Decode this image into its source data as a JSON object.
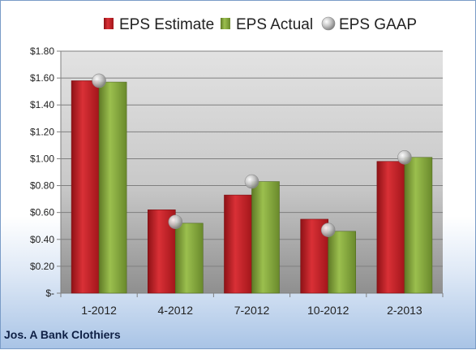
{
  "footer": "Jos. A Bank Clothiers",
  "colors": {
    "estimate": "#c42126",
    "actual": "#83a33c",
    "gaap": "#b7b7b7",
    "plot_bg_top": "#d9d9d9",
    "plot_bg_bottom": "#9a9a9a",
    "accent": "#7a9cc7"
  },
  "chart_data": {
    "type": "bar",
    "categories": [
      "1-2012",
      "4-2012",
      "7-2012",
      "10-2012",
      "2-2013"
    ],
    "series": [
      {
        "name": "EPS Estimate",
        "type": "bar",
        "values": [
          1.58,
          0.62,
          0.73,
          0.55,
          0.98
        ]
      },
      {
        "name": "EPS Actual",
        "type": "bar",
        "values": [
          1.57,
          0.52,
          0.83,
          0.46,
          1.01
        ]
      },
      {
        "name": "EPS GAAP",
        "type": "scatter",
        "values": [
          1.58,
          0.53,
          0.83,
          0.47,
          1.01
        ]
      }
    ],
    "yticks": [
      "$-",
      "$0.20",
      "$0.40",
      "$0.60",
      "$0.80",
      "$1.00",
      "$1.20",
      "$1.40",
      "$1.60",
      "$1.80"
    ],
    "ylim": [
      0,
      1.8
    ],
    "grid": true,
    "legend_position": "top",
    "title": "",
    "xlabel": "",
    "ylabel": ""
  }
}
